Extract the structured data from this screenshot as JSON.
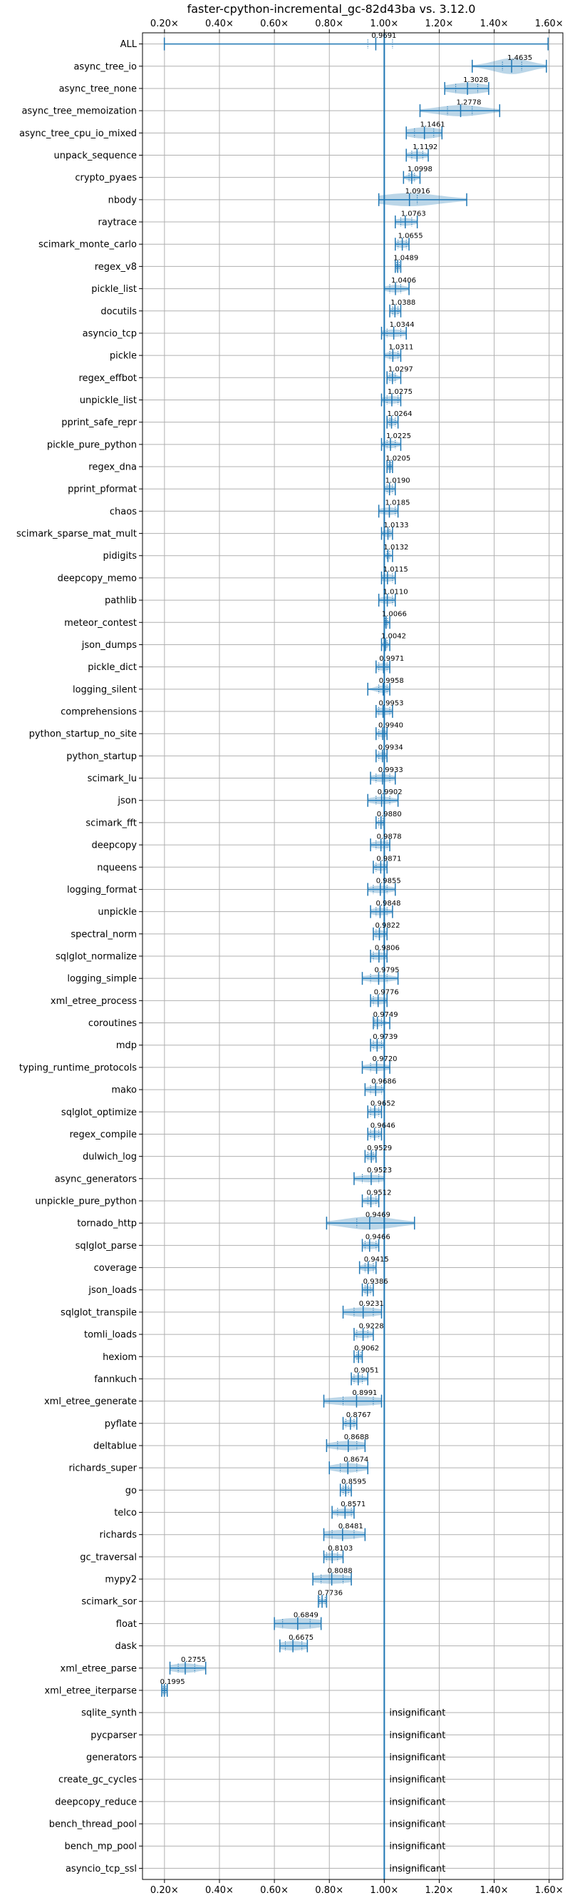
{
  "chart_data": {
    "type": "violin",
    "title": "faster-cpython-incremental_gc-82d43ba vs. 3.12.0",
    "xlabel": "",
    "ylabel": "",
    "xlim": [
      0.12,
      1.65
    ],
    "xticks": [
      0.2,
      0.4,
      0.6,
      0.8,
      1.0,
      1.2,
      1.4,
      1.6
    ],
    "xtick_labels": [
      "0.20×",
      "0.40×",
      "0.60×",
      "0.80×",
      "1.00×",
      "1.20×",
      "1.40×",
      "1.60×"
    ],
    "reference_line": 1.0,
    "grid": true,
    "insignificant_text": "insignificant",
    "benchmarks": [
      {
        "name": "ALL",
        "label": "0.9691",
        "value": 0.9691,
        "min": 0.1995,
        "max": 1.5961,
        "q1": 0.94,
        "q3": 1.03,
        "width": 0.04
      },
      {
        "name": "async_tree_io",
        "label": "1.4635",
        "value": 1.4635,
        "min": 1.32,
        "max": 1.59,
        "q1": 1.43,
        "q3": 1.5,
        "width": 0.85
      },
      {
        "name": "async_tree_none",
        "label": "1.3028",
        "value": 1.3028,
        "min": 1.22,
        "max": 1.38,
        "q1": 1.26,
        "q3": 1.34,
        "width": 0.6
      },
      {
        "name": "async_tree_memoization",
        "label": "1.2778",
        "value": 1.2778,
        "min": 1.13,
        "max": 1.42,
        "q1": 1.23,
        "q3": 1.32,
        "width": 0.6
      },
      {
        "name": "async_tree_cpu_io_mixed",
        "label": "1.1461",
        "value": 1.1461,
        "min": 1.08,
        "max": 1.21,
        "q1": 1.11,
        "q3": 1.18,
        "width": 0.6
      },
      {
        "name": "unpack_sequence",
        "label": "1.1192",
        "value": 1.1192,
        "min": 1.08,
        "max": 1.16,
        "q1": 1.1,
        "q3": 1.14,
        "width": 0.4
      },
      {
        "name": "crypto_pyaes",
        "label": "1.0998",
        "value": 1.0998,
        "min": 1.07,
        "max": 1.13,
        "q1": 1.09,
        "q3": 1.11,
        "width": 0.4
      },
      {
        "name": "nbody",
        "label": "1.0916",
        "value": 1.0916,
        "min": 0.98,
        "max": 1.3,
        "q1": 1.0,
        "q3": 1.12,
        "width": 0.7
      },
      {
        "name": "raytrace",
        "label": "1.0763",
        "value": 1.0763,
        "min": 1.04,
        "max": 1.12,
        "q1": 1.06,
        "q3": 1.1,
        "width": 0.4
      },
      {
        "name": "scimark_monte_carlo",
        "label": "1.0655",
        "value": 1.0655,
        "min": 1.04,
        "max": 1.09,
        "q1": 1.05,
        "q3": 1.08,
        "width": 0.4
      },
      {
        "name": "regex_v8",
        "label": "1.0489",
        "value": 1.0489,
        "min": 1.04,
        "max": 1.06,
        "q1": 1.045,
        "q3": 1.055,
        "width": 0.3
      },
      {
        "name": "pickle_list",
        "label": "1.0406",
        "value": 1.0406,
        "min": 1.0,
        "max": 1.09,
        "q1": 1.02,
        "q3": 1.06,
        "width": 0.4
      },
      {
        "name": "docutils",
        "label": "1.0388",
        "value": 1.0388,
        "min": 1.02,
        "max": 1.06,
        "q1": 1.03,
        "q3": 1.05,
        "width": 0.4
      },
      {
        "name": "asyncio_tcp",
        "label": "1.0344",
        "value": 1.0344,
        "min": 0.99,
        "max": 1.08,
        "q1": 1.01,
        "q3": 1.06,
        "width": 0.4
      },
      {
        "name": "pickle",
        "label": "1.0311",
        "value": 1.0311,
        "min": 1.0,
        "max": 1.06,
        "q1": 1.02,
        "q3": 1.05,
        "width": 0.4
      },
      {
        "name": "regex_effbot",
        "label": "1.0297",
        "value": 1.0297,
        "min": 1.01,
        "max": 1.06,
        "q1": 1.02,
        "q3": 1.04,
        "width": 0.4
      },
      {
        "name": "unpickle_list",
        "label": "1.0275",
        "value": 1.0275,
        "min": 0.99,
        "max": 1.06,
        "q1": 1.01,
        "q3": 1.05,
        "width": 0.4
      },
      {
        "name": "pprint_safe_repr",
        "label": "1.0264",
        "value": 1.0264,
        "min": 1.01,
        "max": 1.05,
        "q1": 1.02,
        "q3": 1.04,
        "width": 0.4
      },
      {
        "name": "pickle_pure_python",
        "label": "1.0225",
        "value": 1.0225,
        "min": 0.99,
        "max": 1.06,
        "q1": 1.01,
        "q3": 1.04,
        "width": 0.4
      },
      {
        "name": "regex_dna",
        "label": "1.0205",
        "value": 1.0205,
        "min": 1.01,
        "max": 1.03,
        "q1": 1.015,
        "q3": 1.025,
        "width": 0.3
      },
      {
        "name": "pprint_pformat",
        "label": "1.0190",
        "value": 1.019,
        "min": 1.0,
        "max": 1.04,
        "q1": 1.01,
        "q3": 1.03,
        "width": 0.4
      },
      {
        "name": "chaos",
        "label": "1.0185",
        "value": 1.0185,
        "min": 0.98,
        "max": 1.05,
        "q1": 1.0,
        "q3": 1.04,
        "width": 0.4
      },
      {
        "name": "scimark_sparse_mat_mult",
        "label": "1.0133",
        "value": 1.0133,
        "min": 0.99,
        "max": 1.03,
        "q1": 1.0,
        "q3": 1.02,
        "width": 0.4
      },
      {
        "name": "pidigits",
        "label": "1.0132",
        "value": 1.0132,
        "min": 1.0,
        "max": 1.03,
        "q1": 1.01,
        "q3": 1.02,
        "width": 0.3
      },
      {
        "name": "deepcopy_memo",
        "label": "1.0115",
        "value": 1.0115,
        "min": 0.99,
        "max": 1.04,
        "q1": 1.0,
        "q3": 1.03,
        "width": 0.4
      },
      {
        "name": "pathlib",
        "label": "1.0110",
        "value": 1.011,
        "min": 0.98,
        "max": 1.04,
        "q1": 1.0,
        "q3": 1.03,
        "width": 0.4
      },
      {
        "name": "meteor_contest",
        "label": "1.0066",
        "value": 1.0066,
        "min": 1.0,
        "max": 1.02,
        "q1": 1.003,
        "q3": 1.012,
        "width": 0.3
      },
      {
        "name": "json_dumps",
        "label": "1.0042",
        "value": 1.0042,
        "min": 0.99,
        "max": 1.02,
        "q1": 1.0,
        "q3": 1.01,
        "width": 0.4
      },
      {
        "name": "pickle_dict",
        "label": "0.9971",
        "value": 0.9971,
        "min": 0.97,
        "max": 1.02,
        "q1": 0.98,
        "q3": 1.01,
        "width": 0.4
      },
      {
        "name": "logging_silent",
        "label": "0.9958",
        "value": 0.9958,
        "min": 0.94,
        "max": 1.02,
        "q1": 0.98,
        "q3": 1.01,
        "width": 0.4
      },
      {
        "name": "comprehensions",
        "label": "0.9953",
        "value": 0.9953,
        "min": 0.97,
        "max": 1.03,
        "q1": 0.98,
        "q3": 1.02,
        "width": 0.4
      },
      {
        "name": "python_startup_no_site",
        "label": "0.9940",
        "value": 0.994,
        "min": 0.97,
        "max": 1.01,
        "q1": 0.98,
        "q3": 1.0,
        "width": 0.4
      },
      {
        "name": "python_startup",
        "label": "0.9934",
        "value": 0.9934,
        "min": 0.97,
        "max": 1.01,
        "q1": 0.98,
        "q3": 1.0,
        "width": 0.4
      },
      {
        "name": "scimark_lu",
        "label": "0.9933",
        "value": 0.9933,
        "min": 0.95,
        "max": 1.04,
        "q1": 0.97,
        "q3": 1.02,
        "width": 0.4
      },
      {
        "name": "json",
        "label": "0.9902",
        "value": 0.9902,
        "min": 0.94,
        "max": 1.05,
        "q1": 0.97,
        "q3": 1.02,
        "width": 0.4
      },
      {
        "name": "scimark_fft",
        "label": "0.9880",
        "value": 0.988,
        "min": 0.97,
        "max": 1.0,
        "q1": 0.98,
        "q3": 0.995,
        "width": 0.3
      },
      {
        "name": "deepcopy",
        "label": "0.9878",
        "value": 0.9878,
        "min": 0.95,
        "max": 1.02,
        "q1": 0.97,
        "q3": 1.01,
        "width": 0.4
      },
      {
        "name": "nqueens",
        "label": "0.9871",
        "value": 0.9871,
        "min": 0.96,
        "max": 1.01,
        "q1": 0.97,
        "q3": 1.0,
        "width": 0.4
      },
      {
        "name": "logging_format",
        "label": "0.9855",
        "value": 0.9855,
        "min": 0.94,
        "max": 1.04,
        "q1": 0.96,
        "q3": 1.01,
        "width": 0.4
      },
      {
        "name": "unpickle",
        "label": "0.9848",
        "value": 0.9848,
        "min": 0.95,
        "max": 1.03,
        "q1": 0.97,
        "q3": 1.01,
        "width": 0.4
      },
      {
        "name": "spectral_norm",
        "label": "0.9822",
        "value": 0.9822,
        "min": 0.96,
        "max": 1.01,
        "q1": 0.97,
        "q3": 1.0,
        "width": 0.4
      },
      {
        "name": "sqlglot_normalize",
        "label": "0.9806",
        "value": 0.9806,
        "min": 0.95,
        "max": 1.01,
        "q1": 0.96,
        "q3": 1.0,
        "width": 0.4
      },
      {
        "name": "logging_simple",
        "label": "0.9795",
        "value": 0.9795,
        "min": 0.92,
        "max": 1.05,
        "q1": 0.95,
        "q3": 1.01,
        "width": 0.4
      },
      {
        "name": "xml_etree_process",
        "label": "0.9776",
        "value": 0.9776,
        "min": 0.95,
        "max": 1.01,
        "q1": 0.96,
        "q3": 1.0,
        "width": 0.4
      },
      {
        "name": "coroutines",
        "label": "0.9749",
        "value": 0.9749,
        "min": 0.96,
        "max": 1.02,
        "q1": 0.965,
        "q3": 0.99,
        "width": 0.4
      },
      {
        "name": "mdp",
        "label": "0.9739",
        "value": 0.9739,
        "min": 0.95,
        "max": 1.0,
        "q1": 0.96,
        "q3": 0.99,
        "width": 0.4
      },
      {
        "name": "typing_runtime_protocols",
        "label": "0.9720",
        "value": 0.972,
        "min": 0.92,
        "max": 1.02,
        "q1": 0.95,
        "q3": 1.0,
        "width": 0.4
      },
      {
        "name": "mako",
        "label": "0.9686",
        "value": 0.9686,
        "min": 0.93,
        "max": 1.0,
        "q1": 0.95,
        "q3": 0.99,
        "width": 0.4
      },
      {
        "name": "sqlglot_optimize",
        "label": "0.9652",
        "value": 0.9652,
        "min": 0.94,
        "max": 0.99,
        "q1": 0.95,
        "q3": 0.98,
        "width": 0.4
      },
      {
        "name": "regex_compile",
        "label": "0.9646",
        "value": 0.9646,
        "min": 0.94,
        "max": 0.99,
        "q1": 0.95,
        "q3": 0.98,
        "width": 0.4
      },
      {
        "name": "dulwich_log",
        "label": "0.9529",
        "value": 0.9529,
        "min": 0.93,
        "max": 0.97,
        "q1": 0.94,
        "q3": 0.96,
        "width": 0.4
      },
      {
        "name": "async_generators",
        "label": "0.9523",
        "value": 0.9523,
        "min": 0.89,
        "max": 1.0,
        "q1": 0.92,
        "q3": 0.98,
        "width": 0.4
      },
      {
        "name": "unpickle_pure_python",
        "label": "0.9512",
        "value": 0.9512,
        "min": 0.92,
        "max": 0.98,
        "q1": 0.94,
        "q3": 0.97,
        "width": 0.4
      },
      {
        "name": "tornado_http",
        "label": "0.9469",
        "value": 0.9469,
        "min": 0.79,
        "max": 1.11,
        "q1": 0.9,
        "q3": 1.0,
        "width": 0.7
      },
      {
        "name": "sqlglot_parse",
        "label": "0.9466",
        "value": 0.9466,
        "min": 0.92,
        "max": 0.98,
        "q1": 0.93,
        "q3": 0.97,
        "width": 0.4
      },
      {
        "name": "coverage",
        "label": "0.9415",
        "value": 0.9415,
        "min": 0.91,
        "max": 0.97,
        "q1": 0.93,
        "q3": 0.96,
        "width": 0.4
      },
      {
        "name": "json_loads",
        "label": "0.9386",
        "value": 0.9386,
        "min": 0.92,
        "max": 0.96,
        "q1": 0.93,
        "q3": 0.95,
        "width": 0.4
      },
      {
        "name": "sqlglot_transpile",
        "label": "0.9231",
        "value": 0.9231,
        "min": 0.85,
        "max": 0.99,
        "q1": 0.89,
        "q3": 0.96,
        "width": 0.5
      },
      {
        "name": "tomli_loads",
        "label": "0.9228",
        "value": 0.9228,
        "min": 0.89,
        "max": 0.96,
        "q1": 0.9,
        "q3": 0.94,
        "width": 0.4
      },
      {
        "name": "hexiom",
        "label": "0.9062",
        "value": 0.9062,
        "min": 0.89,
        "max": 0.92,
        "q1": 0.9,
        "q3": 0.915,
        "width": 0.3
      },
      {
        "name": "fannkuch",
        "label": "0.9051",
        "value": 0.9051,
        "min": 0.88,
        "max": 0.94,
        "q1": 0.89,
        "q3": 0.92,
        "width": 0.4
      },
      {
        "name": "xml_etree_generate",
        "label": "0.8991",
        "value": 0.8991,
        "min": 0.78,
        "max": 0.99,
        "q1": 0.85,
        "q3": 0.96,
        "width": 0.5
      },
      {
        "name": "pyflate",
        "label": "0.8767",
        "value": 0.8767,
        "min": 0.85,
        "max": 0.9,
        "q1": 0.86,
        "q3": 0.89,
        "width": 0.4
      },
      {
        "name": "deltablue",
        "label": "0.8688",
        "value": 0.8688,
        "min": 0.79,
        "max": 0.93,
        "q1": 0.83,
        "q3": 0.9,
        "width": 0.5
      },
      {
        "name": "richards_super",
        "label": "0.8674",
        "value": 0.8674,
        "min": 0.8,
        "max": 0.94,
        "q1": 0.84,
        "q3": 0.9,
        "width": 0.5
      },
      {
        "name": "go",
        "label": "0.8595",
        "value": 0.8595,
        "min": 0.84,
        "max": 0.88,
        "q1": 0.85,
        "q3": 0.87,
        "width": 0.4
      },
      {
        "name": "telco",
        "label": "0.8571",
        "value": 0.8571,
        "min": 0.81,
        "max": 0.89,
        "q1": 0.83,
        "q3": 0.88,
        "width": 0.4
      },
      {
        "name": "richards",
        "label": "0.8481",
        "value": 0.8481,
        "min": 0.78,
        "max": 0.93,
        "q1": 0.81,
        "q3": 0.89,
        "width": 0.5
      },
      {
        "name": "gc_traversal",
        "label": "0.8103",
        "value": 0.8103,
        "min": 0.78,
        "max": 0.85,
        "q1": 0.79,
        "q3": 0.83,
        "width": 0.4
      },
      {
        "name": "mypy2",
        "label": "0.8088",
        "value": 0.8088,
        "min": 0.74,
        "max": 0.88,
        "q1": 0.77,
        "q3": 0.85,
        "width": 0.5
      },
      {
        "name": "scimark_sor",
        "label": "0.7736",
        "value": 0.7736,
        "min": 0.76,
        "max": 0.79,
        "q1": 0.765,
        "q3": 0.785,
        "width": 0.3
      },
      {
        "name": "float",
        "label": "0.6849",
        "value": 0.6849,
        "min": 0.6,
        "max": 0.77,
        "q1": 0.63,
        "q3": 0.73,
        "width": 0.6
      },
      {
        "name": "dask",
        "label": "0.6675",
        "value": 0.6675,
        "min": 0.62,
        "max": 0.72,
        "q1": 0.64,
        "q3": 0.7,
        "width": 0.5
      },
      {
        "name": "xml_etree_parse",
        "label": "0.2755",
        "value": 0.2755,
        "min": 0.22,
        "max": 0.35,
        "q1": 0.25,
        "q3": 0.31,
        "width": 0.5
      },
      {
        "name": "xml_etree_iterparse",
        "label": "0.1995",
        "value": 0.1995,
        "min": 0.19,
        "max": 0.21,
        "q1": 0.195,
        "q3": 0.205,
        "width": 0.4
      },
      {
        "name": "sqlite_synth",
        "insignificant": true
      },
      {
        "name": "pycparser",
        "insignificant": true
      },
      {
        "name": "generators",
        "insignificant": true
      },
      {
        "name": "create_gc_cycles",
        "insignificant": true
      },
      {
        "name": "deepcopy_reduce",
        "insignificant": true
      },
      {
        "name": "bench_thread_pool",
        "insignificant": true
      },
      {
        "name": "bench_mp_pool",
        "insignificant": true
      },
      {
        "name": "asyncio_tcp_ssl",
        "insignificant": true
      }
    ]
  },
  "colors": {
    "line": "#1f77b4",
    "violin_fill": "#1f77b4",
    "grid": "#b0b0b0",
    "axis": "#000000"
  }
}
